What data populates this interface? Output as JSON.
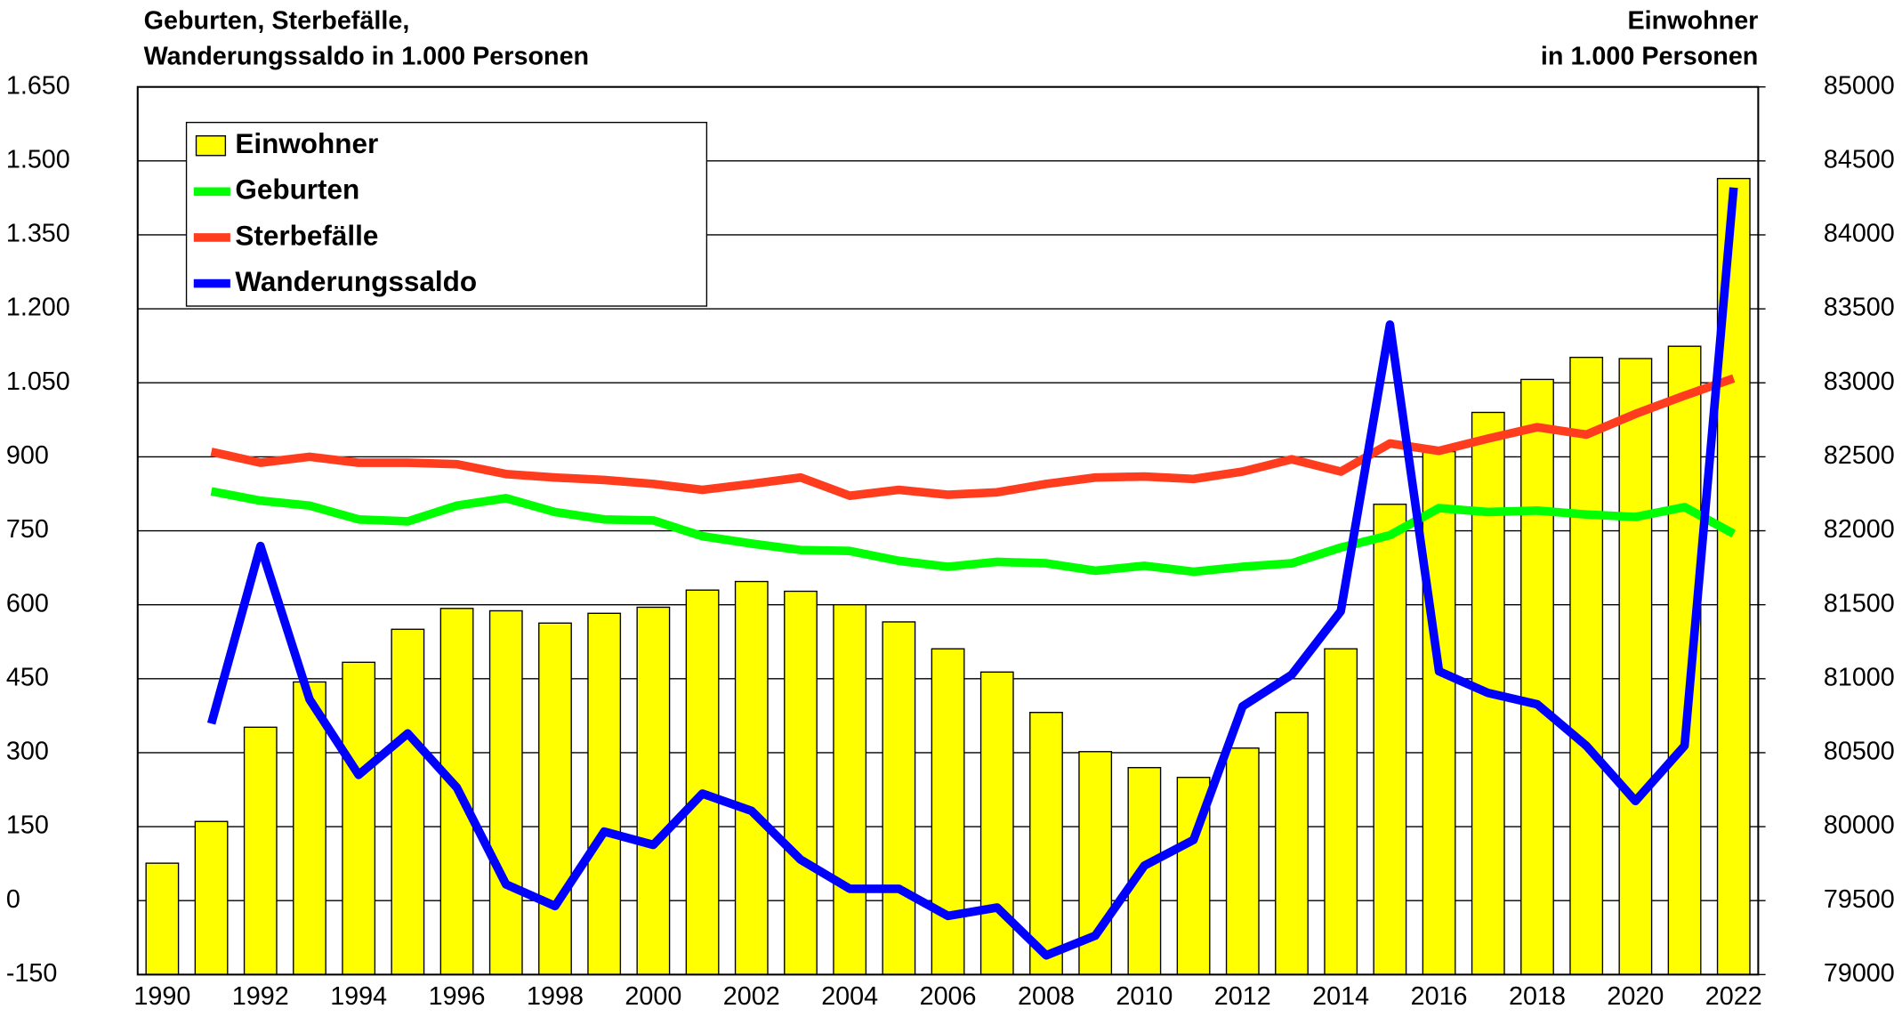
{
  "chart_data": {
    "type": "bar_line",
    "ylabel": [
      "Geburten, Sterbefälle,",
      "Wanderungssaldo in 1.000 Personen"
    ],
    "y2label": [
      "Einwohner",
      "in 1.000 Personen"
    ],
    "categories": [
      1990,
      null,
      1992,
      null,
      1994,
      null,
      1996,
      null,
      1998,
      null,
      2000,
      null,
      2002,
      null,
      2004,
      null,
      2006,
      null,
      2008,
      null,
      2010,
      null,
      2012,
      null,
      2014,
      null,
      2016,
      null,
      2018,
      null,
      2020,
      null,
      2022
    ],
    "ylim": [
      -150,
      1650
    ],
    "yticks": [
      -150,
      0,
      150,
      300,
      450,
      600,
      750,
      900,
      {
        "value": 1050,
        "label": "1.050"
      },
      {
        "value": 1200,
        "label": "1.200"
      },
      {
        "value": 1350,
        "label": "1.350"
      },
      {
        "value": 1500,
        "label": "1.500"
      },
      {
        "value": 1650,
        "label": "1.650"
      }
    ],
    "y2lim": [
      79000,
      85000
    ],
    "y2ticks": [
      79000,
      79500,
      80000,
      80500,
      81000,
      81500,
      82000,
      82500,
      83000,
      83500,
      84000,
      84500,
      85000
    ],
    "grid": true,
    "legend": "upper left",
    "series": [
      {
        "name": "Einwohner",
        "color": "#ffff00",
        "axis": "y2",
        "kind": "bar",
        "values": [
          79753,
          80035,
          80672,
          80978,
          81111,
          81334,
          81475,
          81459,
          81376,
          81442,
          81483,
          81599,
          81657,
          81591,
          81500,
          81384,
          81202,
          81045,
          80772,
          80507,
          80399,
          80333,
          80531,
          80772,
          81202,
          82179,
          82535,
          82800,
          83023,
          83172,
          83164,
          83247,
          84381
        ]
      },
      {
        "name": "Geburten",
        "color": "#00ff00",
        "kind": "line",
        "values": [
          null,
          830,
          811,
          801,
          773,
          769,
          801,
          816,
          788,
          773,
          771,
          739,
          724,
          711,
          709,
          689,
          677,
          687,
          684,
          669,
          679,
          667,
          677,
          684,
          716,
          741,
          796,
          788,
          791,
          783,
          778,
          798,
          744
        ]
      },
      {
        "name": "Sterbefälle",
        "color": "#ff3c1e",
        "kind": "line",
        "values": [
          null,
          910,
          888,
          900,
          888,
          888,
          885,
          865,
          858,
          853,
          845,
          833,
          845,
          858,
          821,
          833,
          823,
          828,
          845,
          858,
          860,
          855,
          870,
          895,
          870,
          927,
          912,
          937,
          960,
          945,
          987,
          1024,
          1059
        ]
      },
      {
        "name": "Wanderungssaldo",
        "color": "#0000ff",
        "kind": "line",
        "values": [
          null,
          359,
          719,
          408,
          255,
          339,
          229,
          33,
          -11,
          140,
          113,
          217,
          182,
          83,
          24,
          24,
          -31,
          -14,
          -111,
          -71,
          71,
          123,
          394,
          458,
          587,
          1168,
          465,
          421,
          398,
          314,
          202,
          314,
          1446
        ]
      }
    ]
  }
}
